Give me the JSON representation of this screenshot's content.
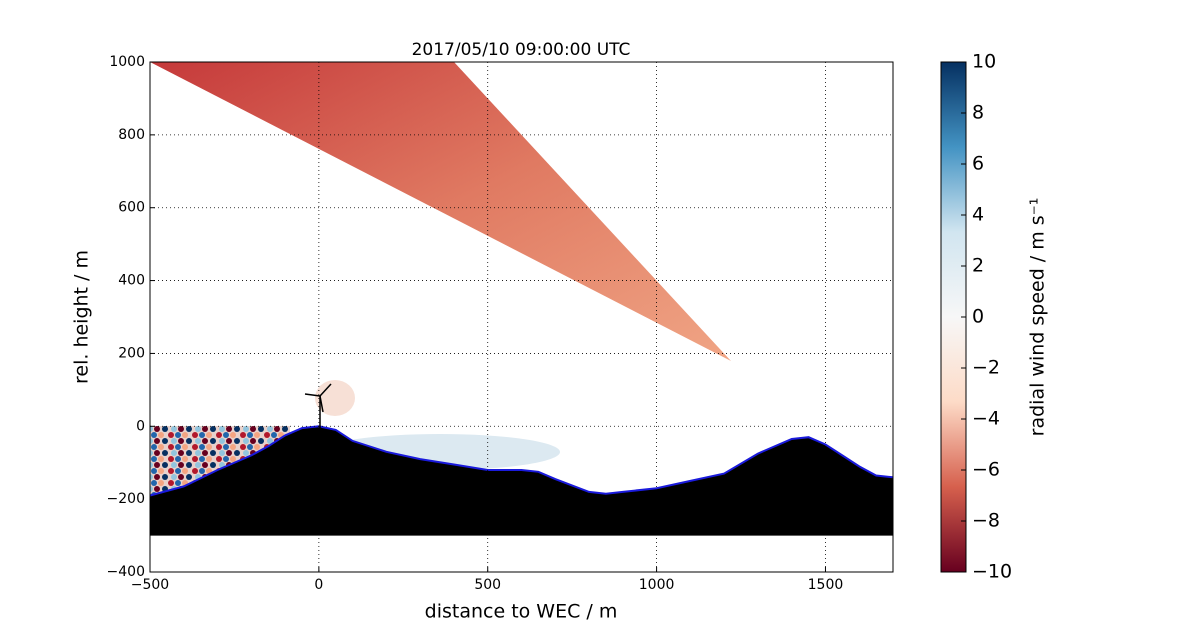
{
  "chart_data": {
    "type": "area",
    "title": "2017/05/10 09:00:00 UTC",
    "xlabel": "distance to WEC / m",
    "ylabel": "rel. height / m",
    "xlim": [
      -500,
      1700
    ],
    "ylim": [
      -400,
      1000
    ],
    "xticks": [
      {
        "value": -500,
        "label": "−500"
      },
      0,
      500,
      1000,
      1500
    ],
    "yticks": [
      {
        "value": -400,
        "label": "−400"
      },
      {
        "value": -200,
        "label": "−200"
      },
      0,
      200,
      400,
      600,
      800,
      1000
    ],
    "grid": true,
    "terrain": {
      "color": "#000000",
      "edge_color": "#1a1adc",
      "floor": -300,
      "x": [
        -500,
        -400,
        -300,
        -200,
        -150,
        -100,
        -50,
        0,
        50,
        100,
        200,
        300,
        400,
        500,
        600,
        650,
        700,
        800,
        850,
        900,
        1000,
        1100,
        1200,
        1300,
        1400,
        1450,
        1500,
        1550,
        1600,
        1650,
        1700
      ],
      "values": [
        -190,
        -165,
        -120,
        -80,
        -55,
        -25,
        -5,
        0,
        -10,
        -40,
        -70,
        -90,
        -105,
        -120,
        -120,
        -125,
        -145,
        -180,
        -185,
        -180,
        -170,
        -150,
        -130,
        -75,
        -35,
        -30,
        -50,
        -80,
        -110,
        -135,
        -140
      ]
    },
    "colorbar": {
      "label": "radial wind speed / m s⁻¹",
      "clim": [
        -10,
        10
      ],
      "colors": [
        "#67001f",
        "#d6604d",
        "#fddbc7",
        "#f7f7f7",
        "#d1e5f0",
        "#4393c3",
        "#053061"
      ],
      "ticks": [
        {
          "value": -10,
          "label": "−10"
        },
        {
          "value": -8,
          "label": "−8"
        },
        {
          "value": -6,
          "label": "−6"
        },
        {
          "value": -4,
          "label": "−4"
        },
        {
          "value": -2,
          "label": "−2"
        },
        0,
        2,
        4,
        6,
        8,
        10
      ]
    }
  }
}
